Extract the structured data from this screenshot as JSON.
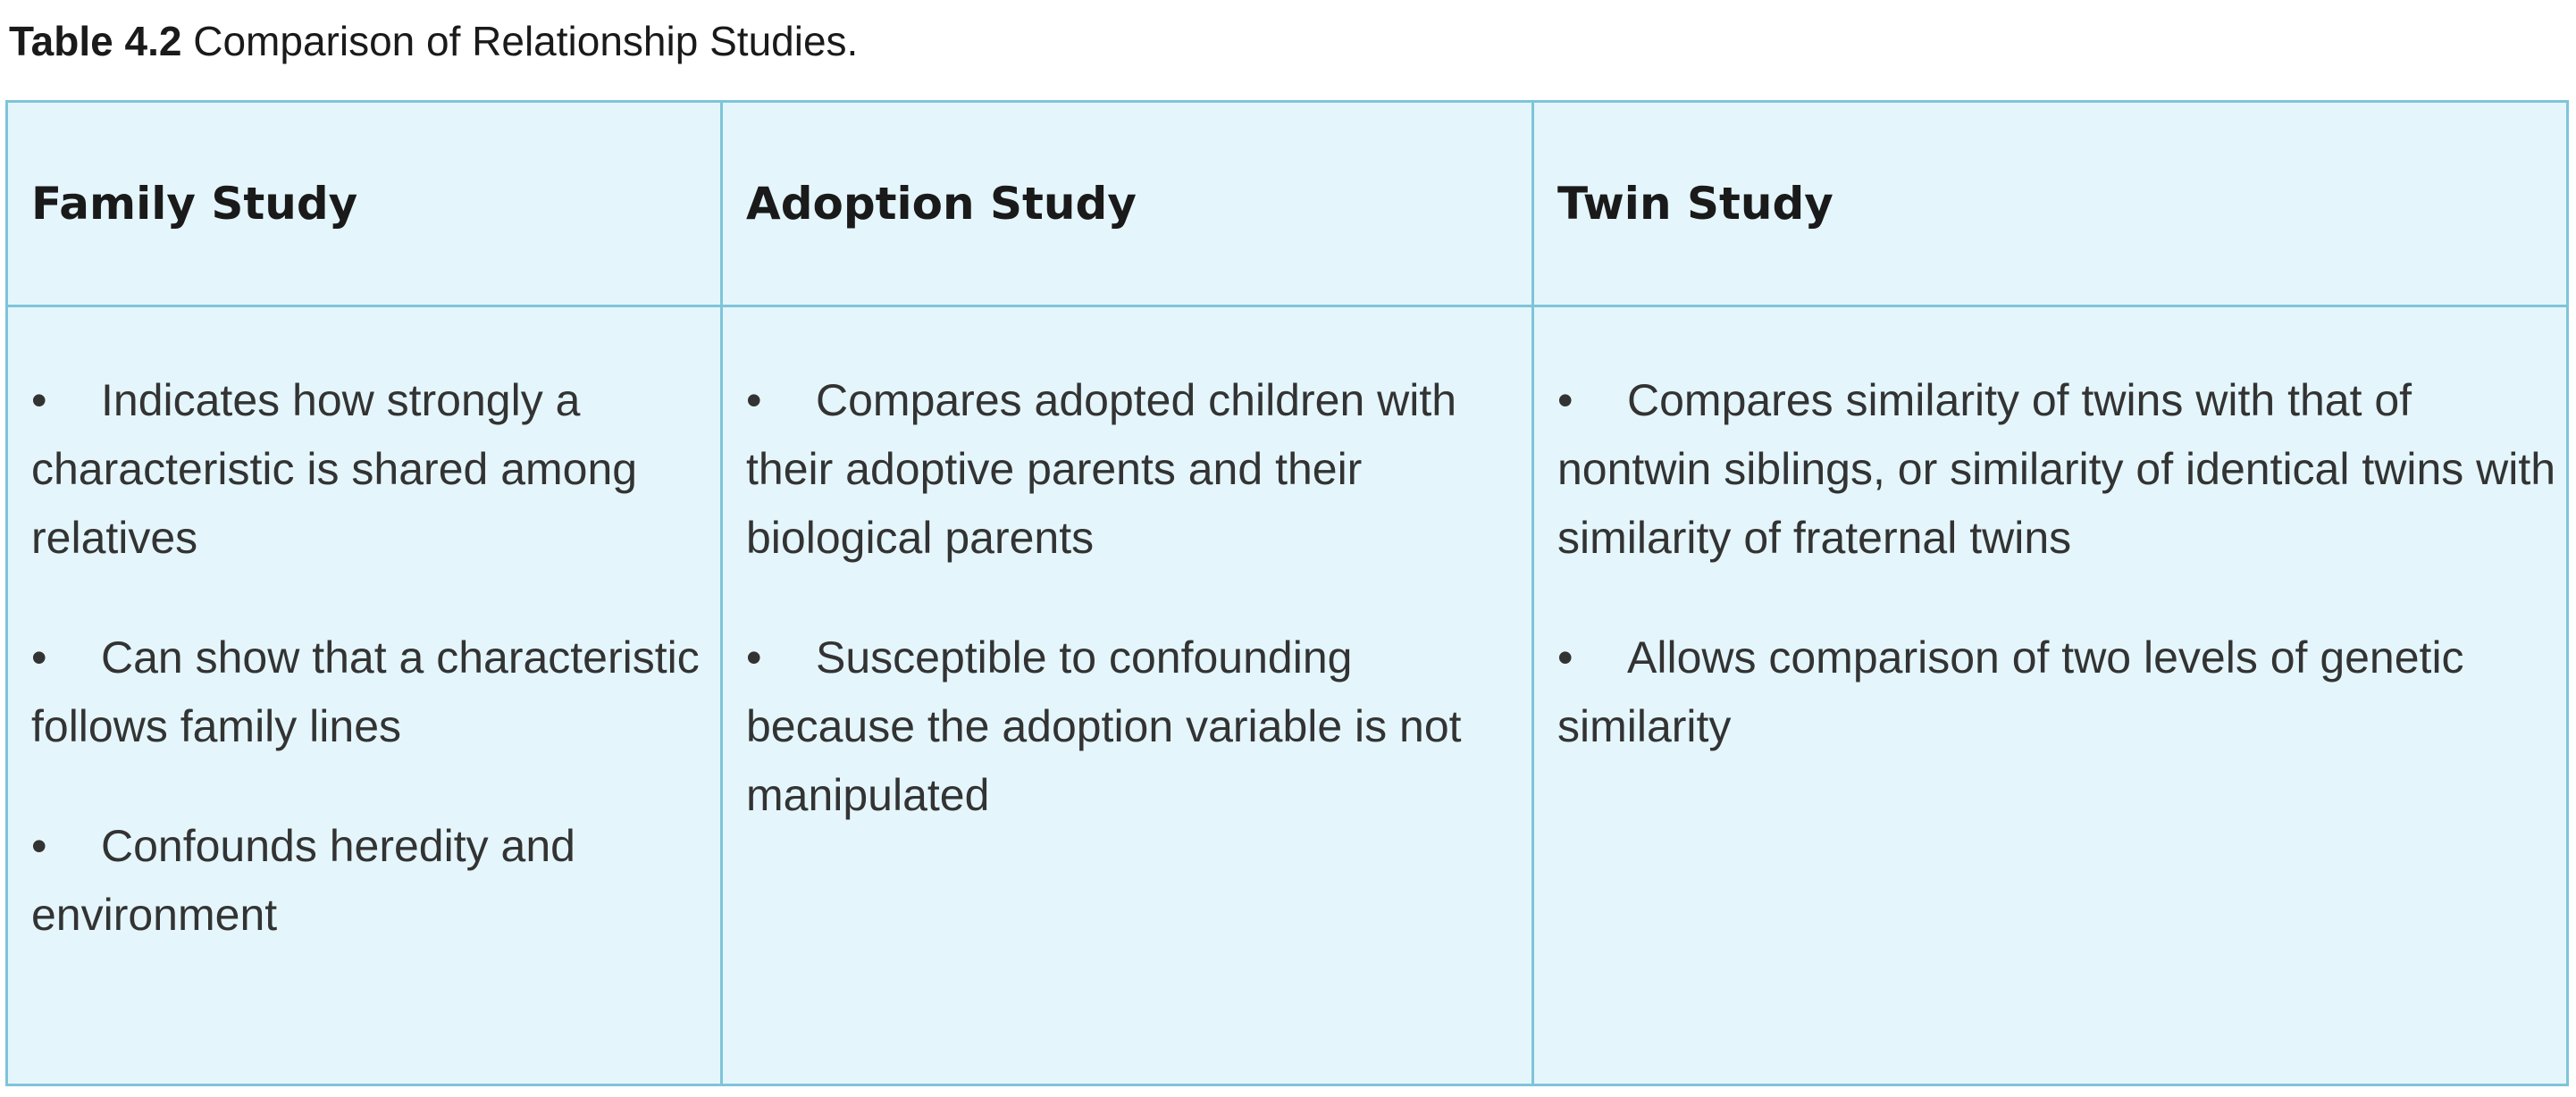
{
  "caption": {
    "label": "Table 4.2",
    "text": " Comparison of Relationship Studies."
  },
  "table": {
    "headers": [
      "Family Study",
      "Adoption Study",
      "Twin Study"
    ],
    "bullet_glyph": "•",
    "columns": [
      {
        "items": [
          "Indicates how strongly a characteristic is shared among relatives",
          "Can show that a characteristic follows family lines",
          "Confounds heredity and environment"
        ]
      },
      {
        "items": [
          "Compares adopted children with their adoptive parents and their biological parents",
          "Susceptible to confounding because the adoption variable is not manipulated"
        ]
      },
      {
        "items": [
          "Compares similarity of twins with that of nontwin siblings, or similarity of identical twins with similarity of fraternal twins",
          "Allows comparison of two levels of genetic similarity"
        ]
      }
    ]
  },
  "colors": {
    "cell_background": "#e4f6fb",
    "border": "#7fc4d9"
  }
}
